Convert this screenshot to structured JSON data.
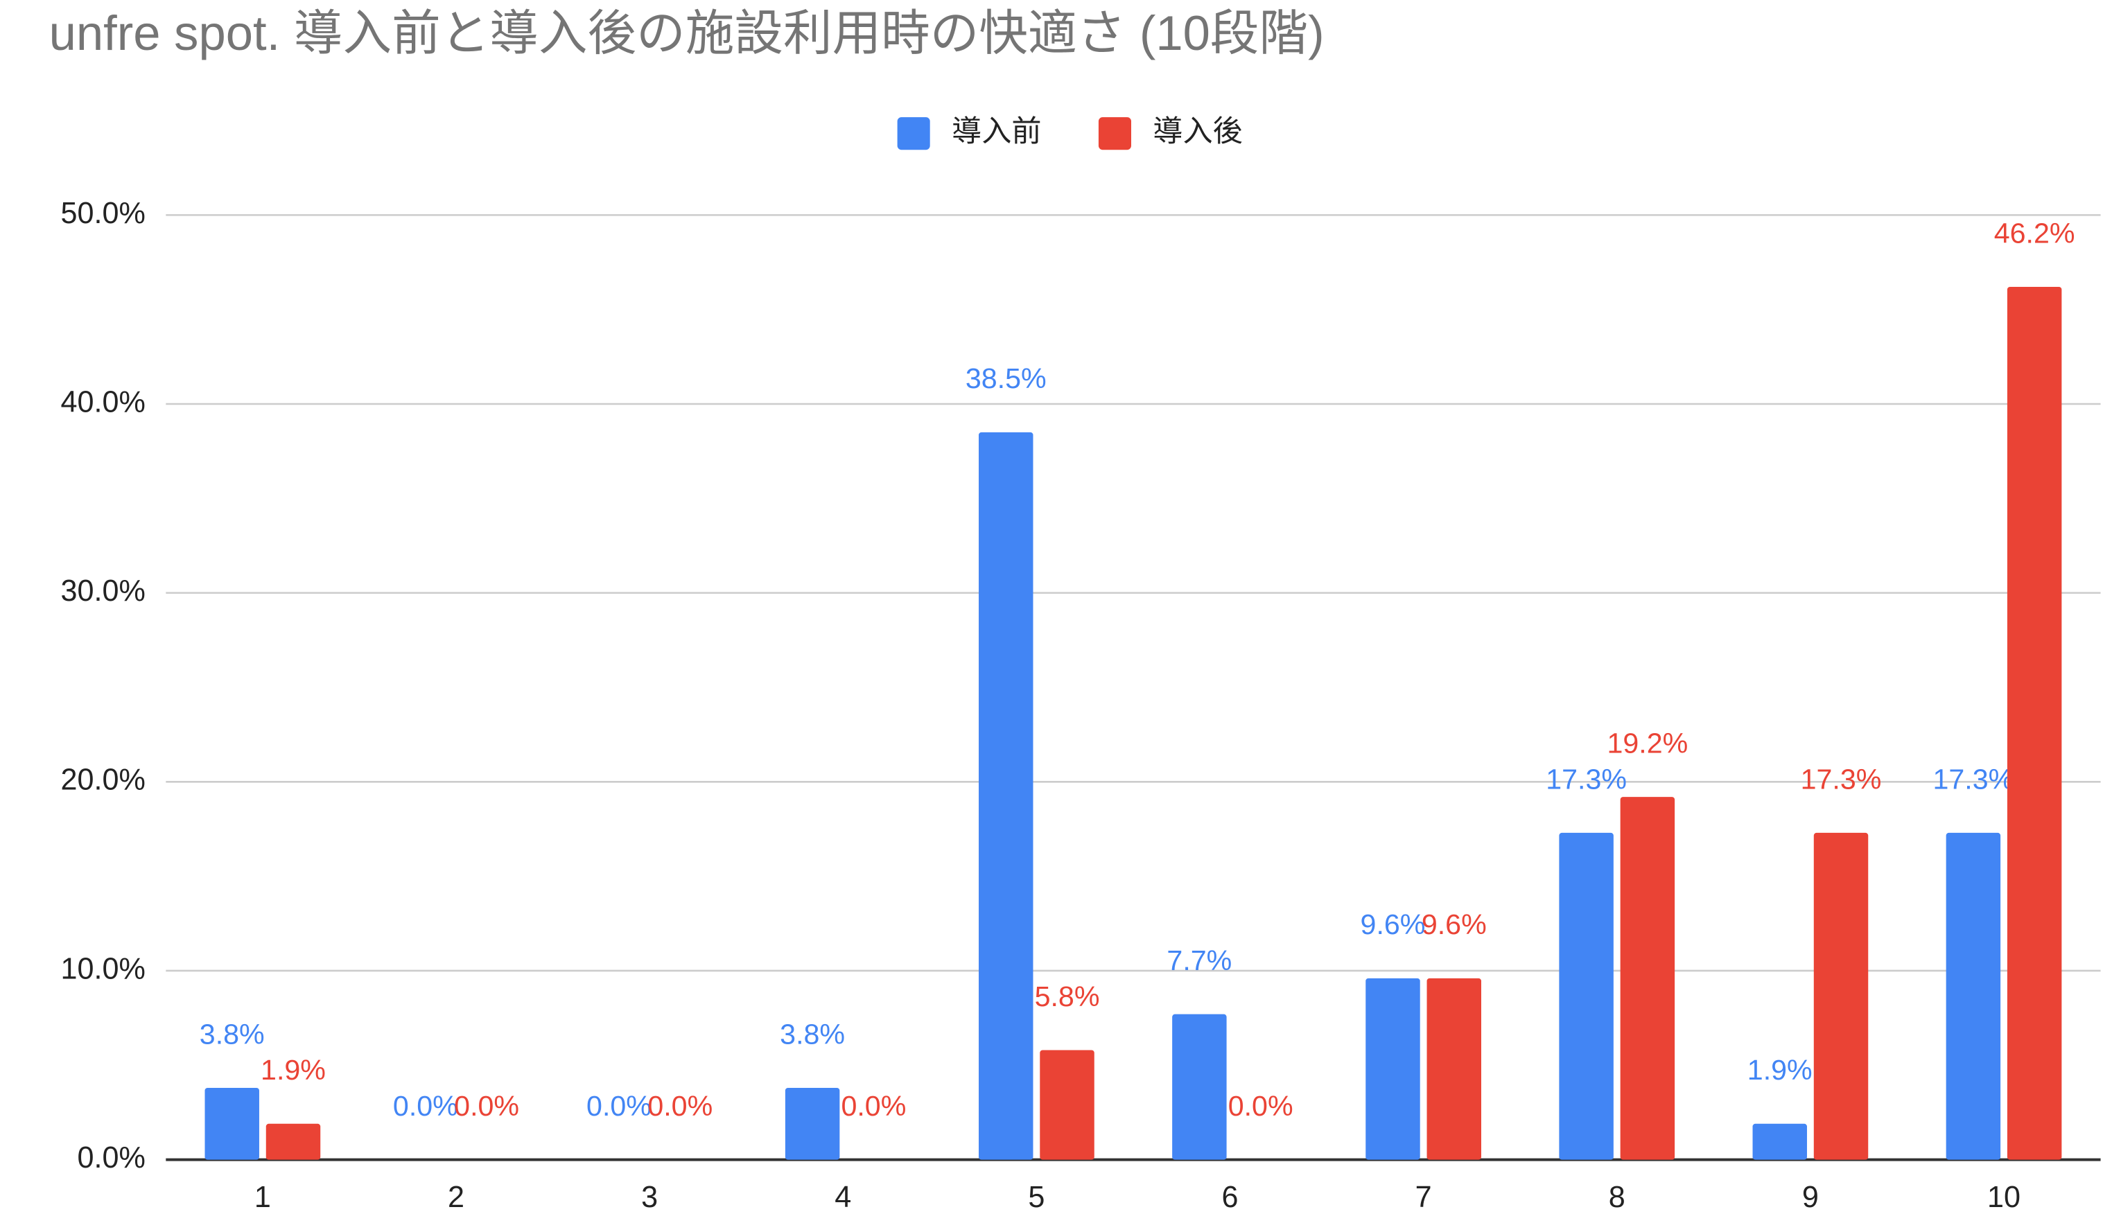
{
  "chart_data": {
    "type": "bar",
    "title": "unfre spot. 導入前と導入後の施設利用時の快適さ (10段階)",
    "categories": [
      "1",
      "2",
      "3",
      "4",
      "5",
      "6",
      "7",
      "8",
      "9",
      "10"
    ],
    "series": [
      {
        "name": "導入前",
        "color": "#4285f4",
        "values": [
          3.8,
          0,
          0,
          3.8,
          38.5,
          7.7,
          9.6,
          17.3,
          1.9,
          17.3
        ],
        "value_labels": [
          "3.8%",
          "0.0%",
          "0.0%",
          "3.8%",
          "38.5%",
          "7.7%",
          "9.6%",
          "17.3%",
          "1.9%",
          "17.3%"
        ]
      },
      {
        "name": "導入後",
        "color": "#ea4335",
        "values": [
          1.9,
          0,
          0,
          0,
          5.8,
          0,
          9.6,
          19.2,
          17.3,
          46.2
        ],
        "value_labels": [
          "1.9%",
          "0.0%",
          "0.0%",
          "0.0%",
          "5.8%",
          "0.0%",
          "9.6%",
          "19.2%",
          "17.3%",
          "46.2%"
        ]
      }
    ],
    "ylim": [
      0,
      50
    ],
    "yticks": [
      {
        "value": 0,
        "label": "0.0%"
      },
      {
        "value": 10,
        "label": "10.0%"
      },
      {
        "value": 20,
        "label": "20.0%"
      },
      {
        "value": 30,
        "label": "30.0%"
      },
      {
        "value": 40,
        "label": "40.0%"
      },
      {
        "value": 50,
        "label": "50.0%"
      }
    ],
    "grid": true,
    "legend": "top"
  }
}
